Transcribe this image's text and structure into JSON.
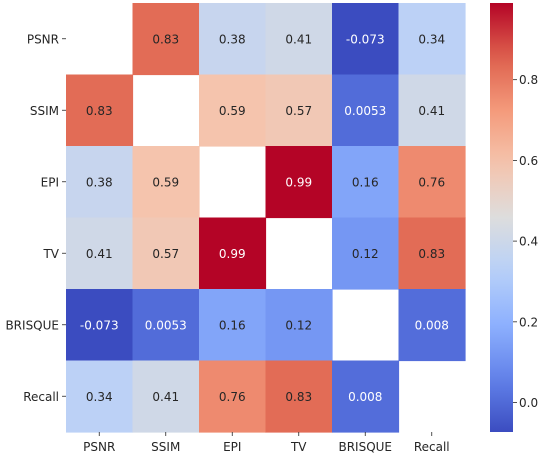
{
  "chart_data": {
    "type": "heatmap",
    "title": "",
    "xlabel": "",
    "ylabel": "",
    "x_categories": [
      "PSNR",
      "SSIM",
      "EPI",
      "TV",
      "BRISQUE",
      "Recall"
    ],
    "y_categories": [
      "PSNR",
      "SSIM",
      "EPI",
      "TV",
      "BRISQUE",
      "Recall"
    ],
    "values": [
      [
        null,
        0.83,
        0.38,
        0.41,
        -0.073,
        0.34
      ],
      [
        0.83,
        null,
        0.59,
        0.57,
        0.0053,
        0.41
      ],
      [
        0.38,
        0.59,
        null,
        0.99,
        0.16,
        0.76
      ],
      [
        0.41,
        0.57,
        0.99,
        null,
        0.12,
        0.83
      ],
      [
        -0.073,
        0.0053,
        0.16,
        0.12,
        null,
        0.008
      ],
      [
        0.34,
        0.41,
        0.76,
        0.83,
        0.008,
        null
      ]
    ],
    "cell_labels": [
      [
        "",
        "0.83",
        "0.38",
        "0.41",
        "-0.073",
        "0.34"
      ],
      [
        "0.83",
        "",
        "0.59",
        "0.57",
        "0.0053",
        "0.41"
      ],
      [
        "0.38",
        "0.59",
        "",
        "0.99",
        "0.16",
        "0.76"
      ],
      [
        "0.41",
        "0.57",
        "0.99",
        "",
        "0.12",
        "0.83"
      ],
      [
        "-0.073",
        "0.0053",
        "0.16",
        "0.12",
        "",
        "0.008"
      ],
      [
        "0.34",
        "0.41",
        "0.76",
        "0.83",
        "0.008",
        ""
      ]
    ],
    "colormap": "coolwarm",
    "vmin": -0.073,
    "vmax": 0.99,
    "colorbar": {
      "ticks": [
        0.0,
        0.2,
        0.4,
        0.6,
        0.8
      ],
      "tick_labels": [
        "0.0",
        "0.2",
        "0.4",
        "0.6",
        "0.8"
      ],
      "placement": "right"
    },
    "grid": false,
    "legend": "none"
  }
}
